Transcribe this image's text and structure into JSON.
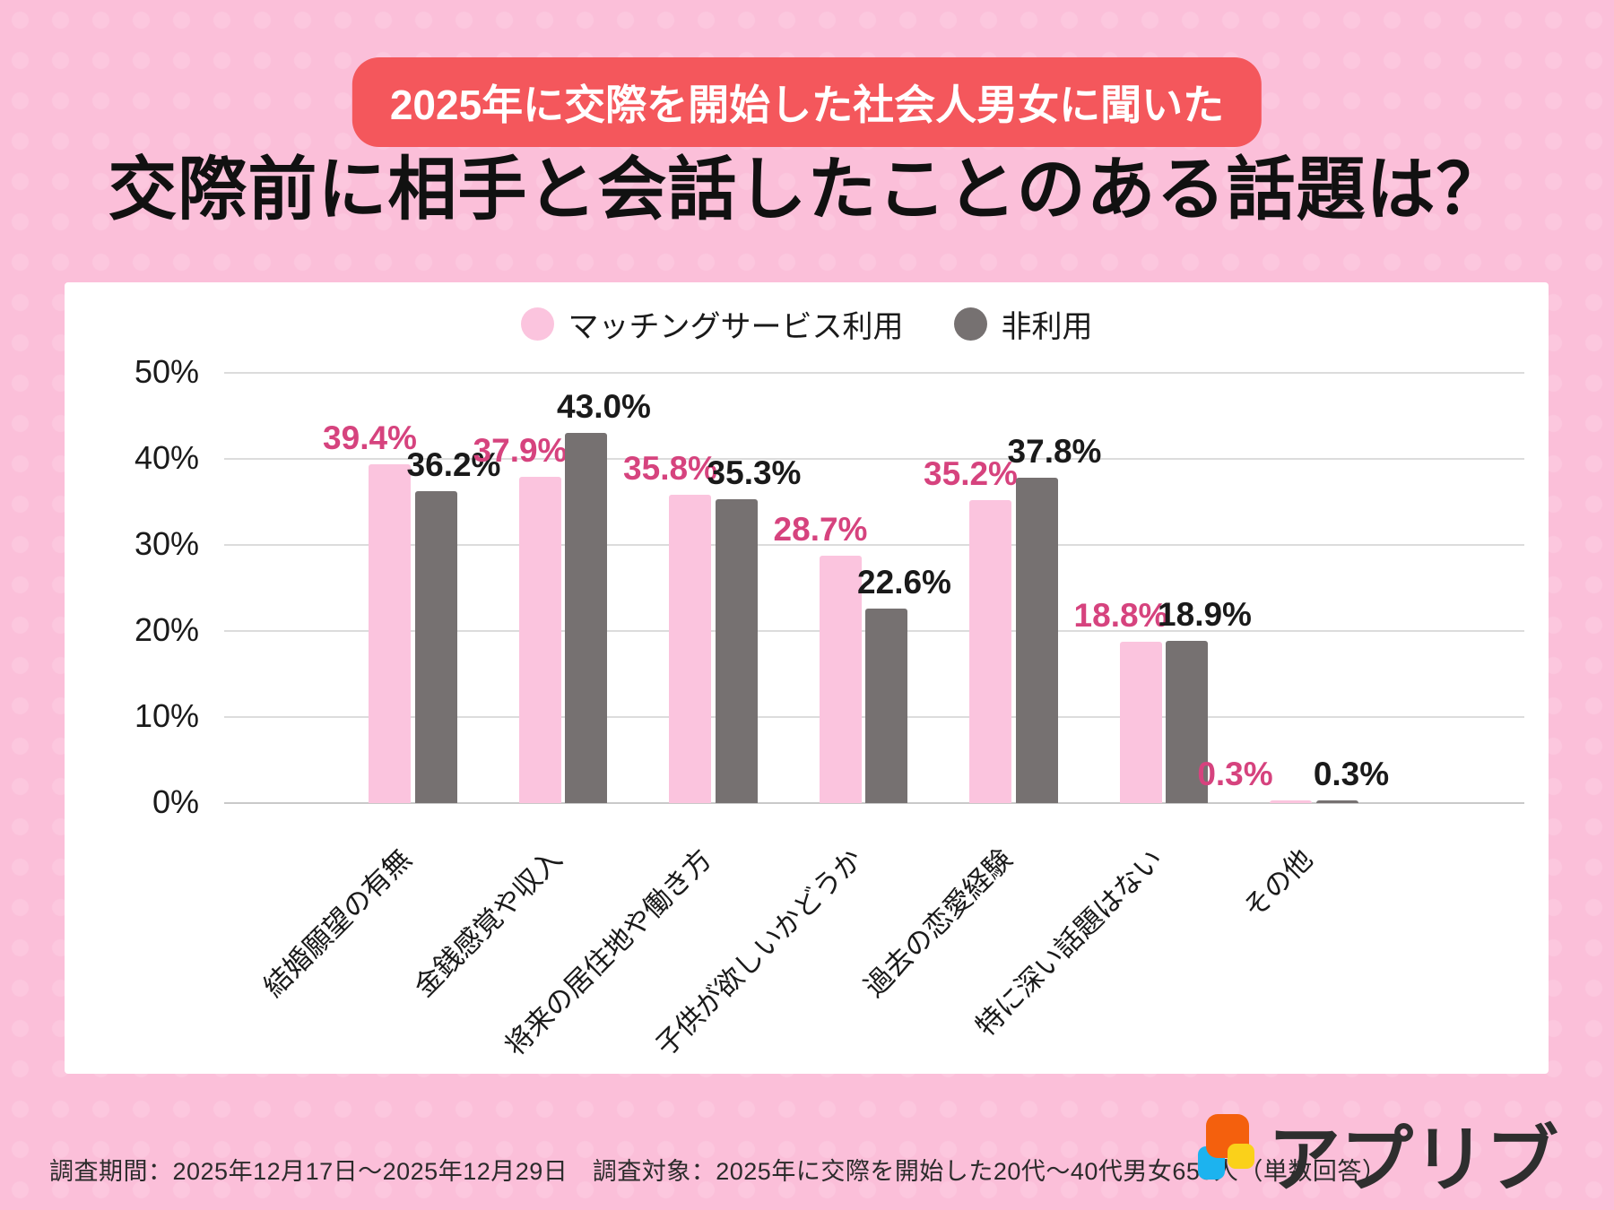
{
  "badge": {
    "label": "2025年に交際を開始した社会人男女に聞いた"
  },
  "title": "交際前に相手と会話したことのある話題は？",
  "chart_data": {
    "type": "bar",
    "title": "交際前に相手と会話したことのある話題は？",
    "categories": [
      "結婚願望の有無",
      "金銭感覚や収入",
      "将来の居住地や働き方",
      "子供が欲しいかどうか",
      "過去の恋愛経験",
      "特に深い話題はない",
      "その他"
    ],
    "series": [
      {
        "name": "マッチングサービス利用",
        "color": "#fbc4de",
        "label_color": "#d6437e",
        "values": [
          39.4,
          37.9,
          35.8,
          28.7,
          35.2,
          18.8,
          0.3
        ]
      },
      {
        "name": "非利用",
        "color": "#767171",
        "label_color": "#1a1a1a",
        "values": [
          36.2,
          43.0,
          35.3,
          22.6,
          37.8,
          18.9,
          0.3
        ]
      }
    ],
    "ylim": [
      0,
      50
    ],
    "ytick_step": 10,
    "ytick_suffix": "%",
    "value_suffix": "%",
    "grid": true,
    "legend_position": "top-center"
  },
  "footer": {
    "survey_note": "調査期間：2025年12月17日〜2025年12月29日　調査対象：2025年に交際を開始した20代〜40代男女655人（単数回答）"
  },
  "logo": {
    "text": "アプリブ",
    "icon": "app-blocks-icon",
    "colors": {
      "orange": "#f4600d",
      "yellow": "#fad11a",
      "blue": "#1cb3ef"
    }
  },
  "colors": {
    "background": "#fbbfd9",
    "badge": "#f4575c",
    "panel": "#ffffff",
    "grid": "#dcdcdc",
    "baseline": "#c9c9c9",
    "axis_text": "#1a1a1a"
  }
}
